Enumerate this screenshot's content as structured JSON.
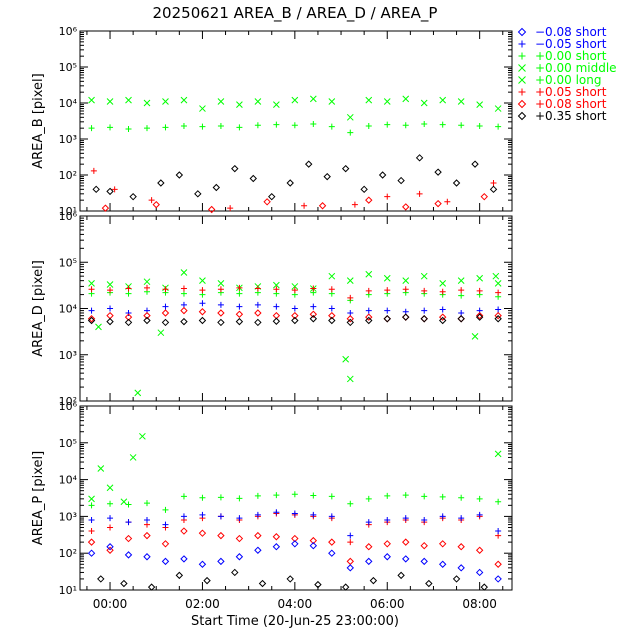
{
  "title": "20250621 AREA_B / AREA_D / AREA_P",
  "colors": {
    "background": "#ffffff",
    "axes": "#000000",
    "blue": "#0000ff",
    "green": "#00ff00",
    "red": "#ff0000",
    "black": "#000000"
  },
  "chart_data": {
    "type": "scatter",
    "title": "20250621 AREA_B / AREA_D / AREA_P",
    "xlabel": "Start Time (20-Jun-25 23:00:00)",
    "x_unit": "hours after 20-Jun-25 23:00:00",
    "xlim": [
      0.35,
      9.7
    ],
    "x_ticks": [
      {
        "value": 1,
        "label": "00:00"
      },
      {
        "value": 3,
        "label": "02:00"
      },
      {
        "value": 5,
        "label": "04:00"
      },
      {
        "value": 7,
        "label": "06:00"
      },
      {
        "value": 9,
        "label": "08:00"
      }
    ],
    "y_scale": "log",
    "legend_position": "right",
    "legend": [
      {
        "label": "−0.08 short",
        "marker": "diamond",
        "color": "#0000ff"
      },
      {
        "label": "−0.05 short",
        "marker": "plus",
        "color": "#0000ff"
      },
      {
        "label": "+0.00 short",
        "marker": "plus",
        "color": "#00ff00"
      },
      {
        "label": "+0.00 middle",
        "marker": "cross",
        "color": "#00ff00"
      },
      {
        "label": "+0.00 long",
        "marker": "cross",
        "color": "#00ff00"
      },
      {
        "label": "+0.05 short",
        "marker": "plus",
        "color": "#ff0000"
      },
      {
        "label": "+0.08 short",
        "marker": "diamond",
        "color": "#ff0000"
      },
      {
        "label": "+0.35 short",
        "marker": "diamond",
        "color": "#000000"
      }
    ],
    "panels": [
      {
        "ylabel": "AREA_B [pixel]",
        "ylim": [
          10,
          1000000
        ],
        "y_tick_labels": [
          "10¹",
          "10²",
          "10³",
          "10⁴",
          "10⁵",
          "10⁶"
        ],
        "series": [
          {
            "legend_index": 3,
            "x": [
              0.6,
              1.0,
              1.4,
              1.8,
              2.2,
              2.6,
              3.0,
              3.4,
              3.8,
              4.2,
              4.6,
              5.0,
              5.4,
              5.8,
              6.2,
              6.6,
              7.0,
              7.4,
              7.8,
              8.2,
              8.6,
              9.0,
              9.4
            ],
            "y": [
              12000,
              11000,
              12000,
              10000,
              11000,
              12000,
              7000,
              11000,
              9000,
              11000,
              9000,
              12000,
              13000,
              11000,
              4000,
              12000,
              11000,
              13000,
              10000,
              12000,
              11000,
              9000,
              7000
            ]
          },
          {
            "legend_index": 2,
            "x": [
              0.6,
              1.0,
              1.4,
              1.8,
              2.2,
              2.6,
              3.0,
              3.4,
              3.8,
              4.2,
              4.6,
              5.0,
              5.4,
              5.8,
              6.2,
              6.6,
              7.0,
              7.4,
              7.8,
              8.2,
              8.6,
              9.0,
              9.4
            ],
            "y": [
              2000,
              2100,
              1900,
              2000,
              2100,
              2300,
              2200,
              2300,
              2100,
              2400,
              2500,
              2400,
              2600,
              2200,
              1500,
              2300,
              2500,
              2400,
              2600,
              2500,
              2400,
              2300,
              2200
            ]
          },
          {
            "legend_index": 5,
            "x": [
              0.65,
              1.1,
              1.9,
              3.6,
              5.2,
              6.3,
              7.0,
              7.7,
              8.3,
              9.3
            ],
            "y": [
              130,
              40,
              20,
              12,
              14,
              15,
              25,
              30,
              18,
              60
            ]
          },
          {
            "legend_index": 6,
            "x": [
              0.9,
              2.0,
              3.2,
              4.4,
              5.6,
              6.6,
              7.4,
              8.1,
              9.1
            ],
            "y": [
              12,
              15,
              11,
              18,
              14,
              20,
              13,
              16,
              25
            ]
          },
          {
            "legend_index": 7,
            "x": [
              0.7,
              1.0,
              1.5,
              2.1,
              2.5,
              2.9,
              3.3,
              3.7,
              4.1,
              4.5,
              4.9,
              5.3,
              5.7,
              6.1,
              6.5,
              6.9,
              7.3,
              7.7,
              8.1,
              8.5,
              8.9,
              9.3
            ],
            "y": [
              40,
              35,
              25,
              60,
              100,
              30,
              45,
              150,
              80,
              25,
              60,
              200,
              90,
              150,
              40,
              100,
              70,
              300,
              120,
              60,
              200,
              40
            ]
          }
        ]
      },
      {
        "ylabel": "AREA_D [pixel]",
        "ylim": [
          100,
          1000000
        ],
        "y_tick_labels": [
          "10²",
          "10³",
          "10⁴",
          "10⁵",
          "10⁶"
        ],
        "series": [
          {
            "legend_index": 3,
            "x": [
              0.6,
              1.0,
              1.4,
              1.8,
              2.2,
              2.6,
              3.0,
              3.4,
              3.8,
              4.2,
              4.6,
              5.0,
              5.4,
              5.8,
              6.2,
              6.6,
              7.0,
              7.4,
              7.8,
              8.2,
              8.6,
              9.0,
              9.4
            ],
            "y": [
              35000,
              33000,
              30000,
              38000,
              28000,
              60000,
              40000,
              35000,
              28000,
              30000,
              32000,
              30000,
              27000,
              50000,
              40000,
              55000,
              45000,
              40000,
              50000,
              35000,
              40000,
              45000,
              35000
            ]
          },
          {
            "legend_index": 2,
            "x": [
              0.6,
              1.0,
              1.4,
              1.8,
              2.2,
              2.6,
              3.0,
              3.4,
              3.8,
              4.2,
              4.6,
              5.0,
              5.4,
              5.8,
              6.2,
              6.6,
              7.0,
              7.4,
              7.8,
              8.2,
              8.6,
              9.0,
              9.4
            ],
            "y": [
              21000,
              22000,
              21000,
              23000,
              22000,
              21000,
              20000,
              22000,
              21000,
              22000,
              21000,
              20000,
              22000,
              21000,
              15000,
              20000,
              21000,
              22000,
              21000,
              20000,
              19000,
              20000,
              18000
            ]
          },
          {
            "legend_index": 5,
            "x": [
              0.6,
              1.0,
              1.4,
              1.8,
              2.2,
              2.6,
              3.0,
              3.4,
              3.8,
              4.2,
              4.6,
              5.0,
              5.4,
              5.8,
              6.2,
              6.6,
              7.0,
              7.4,
              7.8,
              8.2,
              8.6,
              9.0,
              9.4
            ],
            "y": [
              26000,
              25000,
              27000,
              28000,
              26000,
              27000,
              25000,
              26000,
              28000,
              27000,
              26000,
              25000,
              27000,
              26000,
              17000,
              24000,
              25000,
              26000,
              24000,
              23000,
              25000,
              24000,
              22000
            ]
          },
          {
            "legend_index": 1,
            "x": [
              0.6,
              1.0,
              1.4,
              1.8,
              2.2,
              2.6,
              3.0,
              3.4,
              3.8,
              4.2,
              4.6,
              5.0,
              5.4,
              5.8,
              6.2,
              6.6,
              7.0,
              7.4,
              7.8,
              8.2,
              8.6,
              9.0,
              9.4
            ],
            "y": [
              9000,
              10000,
              8000,
              9000,
              11000,
              12000,
              13000,
              12000,
              11000,
              12000,
              11000,
              10000,
              11000,
              10000,
              8000,
              9000,
              9000,
              8500,
              9000,
              9500,
              8000,
              9000,
              9500
            ]
          },
          {
            "legend_index": 6,
            "x": [
              0.6,
              1.0,
              1.4,
              1.8,
              2.2,
              2.6,
              3.0,
              3.4,
              3.8,
              4.2,
              4.6,
              5.0,
              5.4,
              5.8,
              6.2,
              6.6,
              7.0,
              7.4,
              7.8,
              8.2,
              8.6,
              9.0,
              9.4
            ],
            "y": [
              6000,
              7000,
              6500,
              7000,
              8000,
              9000,
              8500,
              8000,
              7500,
              8000,
              7000,
              7000,
              7500,
              7000,
              6000,
              6500,
              6000,
              6500,
              6000,
              6500,
              6000,
              7000,
              7000
            ]
          },
          {
            "legend_index": 7,
            "x": [
              0.6,
              1.0,
              1.4,
              1.8,
              2.2,
              2.6,
              3.0,
              3.4,
              3.8,
              4.2,
              4.6,
              5.0,
              5.4,
              5.8,
              6.2,
              6.6,
              7.0,
              7.4,
              7.8,
              8.2,
              8.6,
              9.0,
              9.4
            ],
            "y": [
              5500,
              5200,
              5000,
              5500,
              5000,
              5200,
              5500,
              5000,
              5200,
              5000,
              5300,
              5500,
              6000,
              5500,
              5000,
              5500,
              6000,
              6500,
              6000,
              5500,
              6000,
              6500,
              6000
            ]
          },
          {
            "legend_index": 4,
            "x": [
              0.75,
              1.6,
              2.1,
              6.1,
              6.2,
              8.9,
              9.35
            ],
            "y": [
              4000,
              150,
              3000,
              800,
              300,
              2500,
              50000
            ]
          }
        ]
      },
      {
        "ylabel": "AREA_P [pixel]",
        "ylim": [
          10,
          1000000
        ],
        "y_tick_labels": [
          "10¹",
          "10²",
          "10³",
          "10⁴",
          "10⁵",
          "10⁶"
        ],
        "series": [
          {
            "legend_index": 4,
            "x": [
              0.6,
              0.8,
              1.0,
              1.3,
              1.5,
              1.7,
              9.4
            ],
            "y": [
              3000,
              20000,
              6000,
              2500,
              40000,
              150000,
              50000
            ]
          },
          {
            "legend_index": 2,
            "x": [
              0.6,
              1.0,
              1.4,
              1.8,
              2.2,
              2.6,
              3.0,
              3.4,
              3.8,
              4.2,
              4.6,
              5.0,
              5.4,
              5.8,
              6.2,
              6.6,
              7.0,
              7.4,
              7.8,
              8.2,
              8.6,
              9.0,
              9.4
            ],
            "y": [
              2000,
              2200,
              2100,
              2300,
              1500,
              3500,
              3200,
              3300,
              3100,
              3600,
              3800,
              4000,
              3700,
              3500,
              2200,
              3000,
              3600,
              3800,
              3500,
              3400,
              3200,
              3000,
              2500
            ]
          },
          {
            "legend_index": 5,
            "x": [
              0.6,
              1.0,
              1.4,
              1.8,
              2.2,
              2.6,
              3.0,
              3.4,
              3.8,
              4.2,
              4.6,
              5.0,
              5.4,
              5.8,
              6.2,
              6.6,
              7.0,
              7.4,
              7.8,
              8.2,
              8.6,
              9.0,
              9.4
            ],
            "y": [
              400,
              500,
              700,
              600,
              500,
              800,
              900,
              1000,
              800,
              1000,
              1200,
              1100,
              1000,
              900,
              200,
              600,
              700,
              800,
              700,
              900,
              800,
              1000,
              300
            ]
          },
          {
            "legend_index": 1,
            "x": [
              0.6,
              1.0,
              1.4,
              1.8,
              2.2,
              2.6,
              3.0,
              3.4,
              3.8,
              4.2,
              4.6,
              5.0,
              5.4,
              5.8,
              6.2,
              6.6,
              7.0,
              7.4,
              7.8,
              8.2,
              8.6,
              9.0,
              9.4
            ],
            "y": [
              800,
              900,
              700,
              800,
              600,
              1000,
              1100,
              1000,
              900,
              1100,
              1300,
              1200,
              1100,
              1000,
              300,
              700,
              800,
              900,
              800,
              1000,
              900,
              1100,
              400
            ]
          },
          {
            "legend_index": 6,
            "x": [
              0.6,
              1.0,
              1.4,
              1.8,
              2.2,
              2.6,
              3.0,
              3.4,
              3.8,
              4.2,
              4.6,
              5.0,
              5.4,
              5.8,
              6.2,
              6.6,
              7.0,
              7.4,
              7.8,
              8.2,
              8.6,
              9.0,
              9.4
            ],
            "y": [
              200,
              120,
              250,
              300,
              180,
              400,
              350,
              300,
              250,
              300,
              280,
              250,
              220,
              200,
              60,
              150,
              180,
              200,
              160,
              180,
              150,
              120,
              50
            ]
          },
          {
            "legend_index": 0,
            "x": [
              0.6,
              1.0,
              1.4,
              1.8,
              2.2,
              2.6,
              3.0,
              3.4,
              3.8,
              4.2,
              4.6,
              5.0,
              5.4,
              5.8,
              6.2,
              6.6,
              7.0,
              7.4,
              7.8,
              8.2,
              8.6,
              9.0,
              9.4
            ],
            "y": [
              100,
              150,
              90,
              80,
              60,
              70,
              50,
              60,
              80,
              120,
              150,
              180,
              160,
              100,
              40,
              60,
              80,
              70,
              60,
              50,
              40,
              30,
              20
            ]
          },
          {
            "legend_index": 7,
            "x": [
              0.8,
              1.3,
              1.9,
              2.5,
              3.1,
              3.7,
              4.3,
              4.9,
              5.5,
              6.1,
              6.7,
              7.3,
              7.9,
              8.5,
              9.1
            ],
            "y": [
              20,
              15,
              12,
              25,
              18,
              30,
              15,
              20,
              14,
              12,
              18,
              25,
              15,
              20,
              12
            ]
          }
        ]
      }
    ]
  }
}
